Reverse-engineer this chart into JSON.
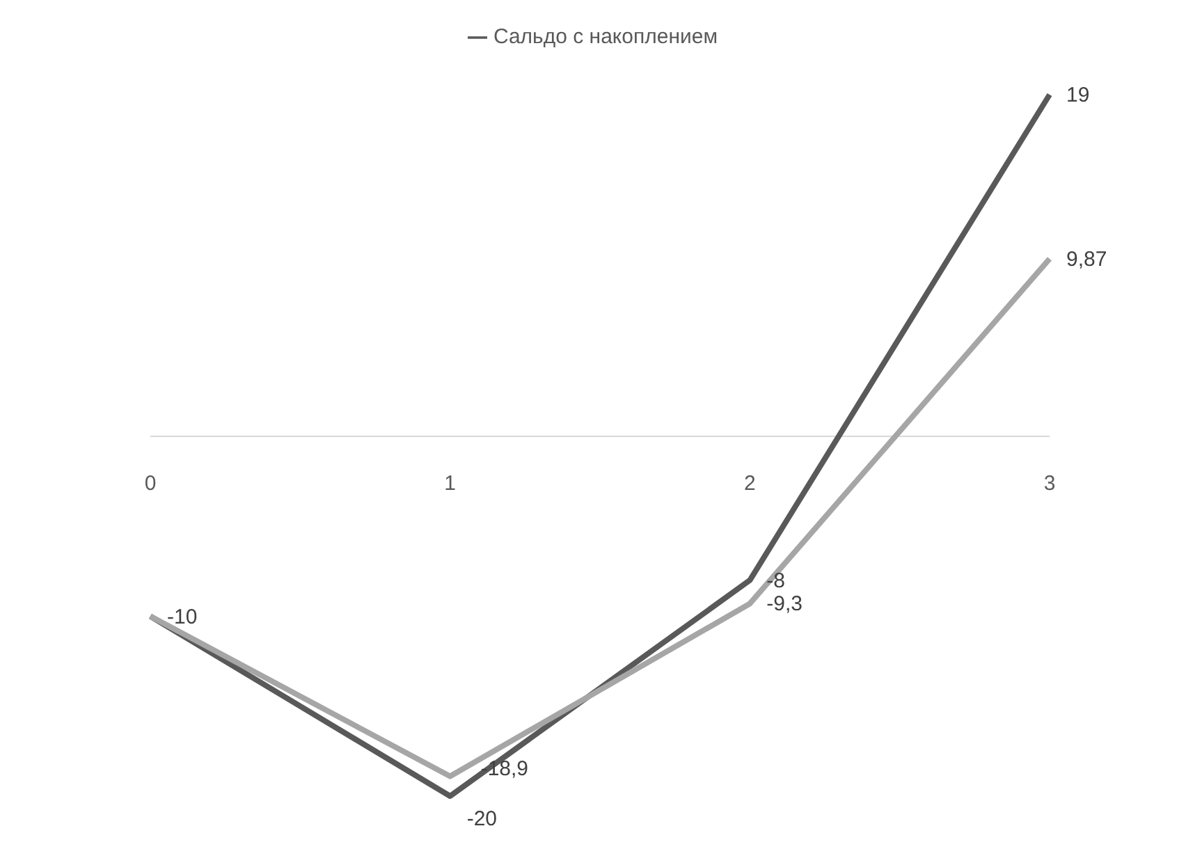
{
  "chart_data": {
    "type": "line",
    "categories": [
      "0",
      "1",
      "2",
      "3"
    ],
    "series": [
      {
        "name": "Сальдо с накоплением",
        "color": "#595959",
        "values": [
          -10,
          -20,
          -8,
          19
        ],
        "value_labels": [
          "-10",
          "-20",
          "-8",
          "19"
        ]
      },
      {
        "color": "#a6a6a6",
        "values": [
          -10,
          -18.9,
          -9.3,
          9.87
        ],
        "value_labels": [
          null,
          "-18,9",
          "-9,3",
          "9,87"
        ]
      }
    ],
    "legend": "top",
    "marker": "none"
  }
}
